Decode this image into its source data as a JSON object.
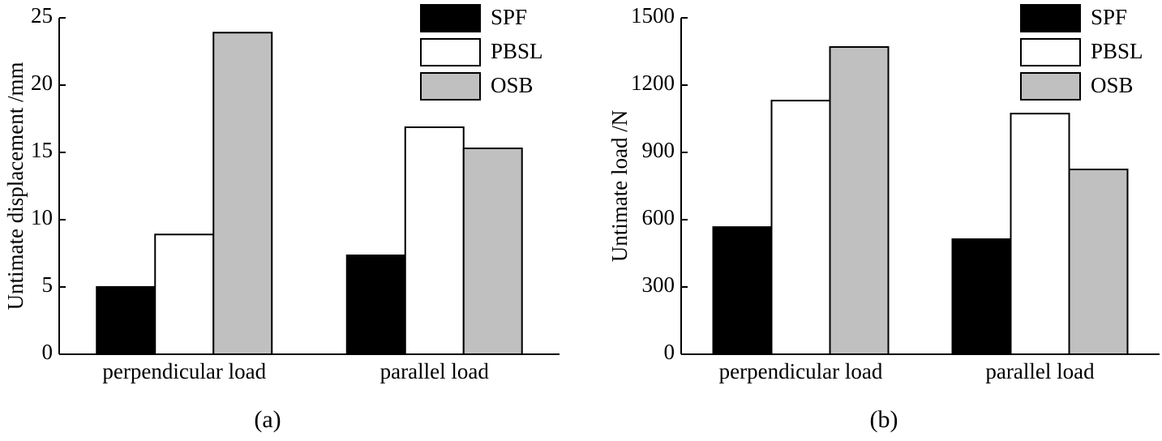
{
  "chart_data": [
    {
      "type": "bar",
      "caption": "(a)",
      "y_label": "Untimate displacement /mm",
      "categories": [
        "perpendicular load",
        "parallel load"
      ],
      "series": [
        {
          "name": "SPF",
          "color": "#000000",
          "values": [
            5.0,
            7.35
          ]
        },
        {
          "name": "PBSL",
          "color": "#ffffff",
          "values": [
            8.9,
            16.87
          ]
        },
        {
          "name": "OSB",
          "color": "#c0c0c0",
          "values": [
            23.9,
            15.3
          ]
        }
      ],
      "ylim": [
        0,
        25
      ],
      "yticks": [
        0,
        5,
        10,
        15,
        20,
        25
      ],
      "legend": "upper right"
    },
    {
      "type": "bar",
      "caption": "(b)",
      "y_label": "Untimate load /N",
      "categories": [
        "perpendicular load",
        "parallel load"
      ],
      "series": [
        {
          "name": "SPF",
          "color": "#000000",
          "values": [
            567,
            513
          ]
        },
        {
          "name": "PBSL",
          "color": "#ffffff",
          "values": [
            1131,
            1073
          ]
        },
        {
          "name": "OSB",
          "color": "#c0c0c0",
          "values": [
            1370,
            824
          ]
        }
      ],
      "ylim": [
        0,
        1500
      ],
      "yticks": [
        0,
        300,
        600,
        900,
        1200,
        1500
      ],
      "legend": "upper right"
    }
  ]
}
